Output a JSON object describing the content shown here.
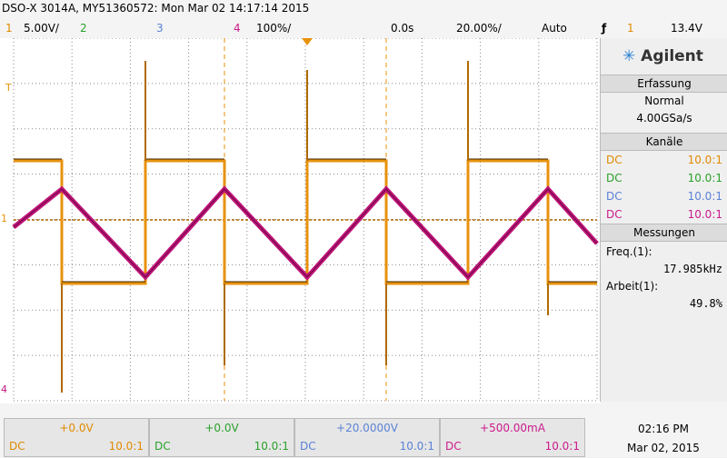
{
  "header": {
    "title": "DSO-X 3014A, MY51360572: Mon Mar 02 14:17:14 2015"
  },
  "settings": {
    "ch1": "1",
    "ch1_scale": "5.00V/",
    "ch2": "2",
    "ch3": "3",
    "ch4": "4",
    "ch4_scale": "100%/",
    "time_offset": "0.0s",
    "time_scale": "20.00%/",
    "trigger_mode": "Auto",
    "trigger_source": "1",
    "trigger_level": "13.4V"
  },
  "markers": {
    "trigger": "T",
    "ch1": "1",
    "ch4": "4"
  },
  "panel": {
    "brand": "Agilent",
    "acquisition": {
      "title": "Erfassung",
      "mode": "Normal",
      "rate": "4.00GSa/s"
    },
    "channels": {
      "title": "Kanäle",
      "rows": [
        [
          "DC",
          "10.0:1"
        ],
        [
          "DC",
          "10.0:1"
        ],
        [
          "DC",
          "10.0:1"
        ],
        [
          "DC",
          "10.0:1"
        ]
      ]
    },
    "measurements": {
      "title": "Messungen",
      "items": [
        {
          "label": "Freq.(1):",
          "value": "17.985kHz"
        },
        {
          "label": "Arbeit(1):",
          "value": "49.8%"
        }
      ]
    }
  },
  "footer": {
    "channels": [
      {
        "offset": "+0.0V",
        "coupling": "DC",
        "probe": "10.0:1"
      },
      {
        "offset": "+0.0V",
        "coupling": "DC",
        "probe": "10.0:1"
      },
      {
        "offset": "+20.0000V",
        "coupling": "DC",
        "probe": "10.0:1"
      },
      {
        "offset": "+500.00mA",
        "coupling": "DC",
        "probe": "10.0:1"
      }
    ],
    "time": "02:16 PM",
    "date": "Mar 02, 2015"
  }
}
